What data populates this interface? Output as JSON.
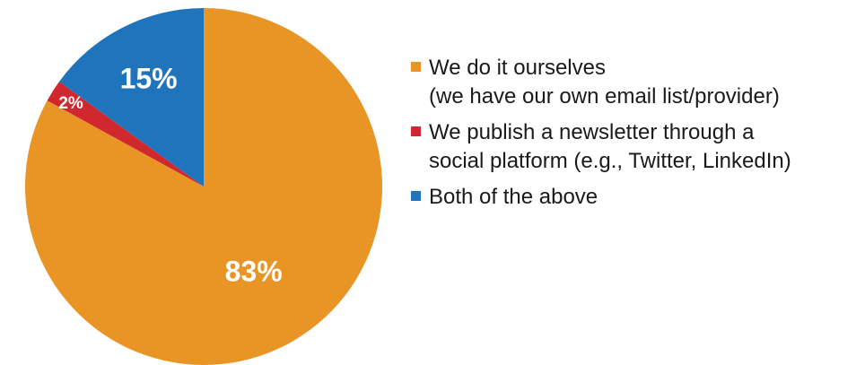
{
  "chart_data": {
    "type": "pie",
    "categories": [
      "We do it ourselves\n(we have our own email list/provider)",
      "We publish a newsletter through a\nsocial platform (e.g., Twitter, LinkedIn)",
      "Both of the above"
    ],
    "values": [
      83,
      2,
      15
    ],
    "value_labels": [
      "83%",
      "2%",
      "15%"
    ],
    "colors": [
      "#E99526",
      "#D0282E",
      "#1F74BB"
    ],
    "start_angle_deg": 0,
    "direction": "clockwise",
    "legend_position": "right",
    "title": ""
  }
}
